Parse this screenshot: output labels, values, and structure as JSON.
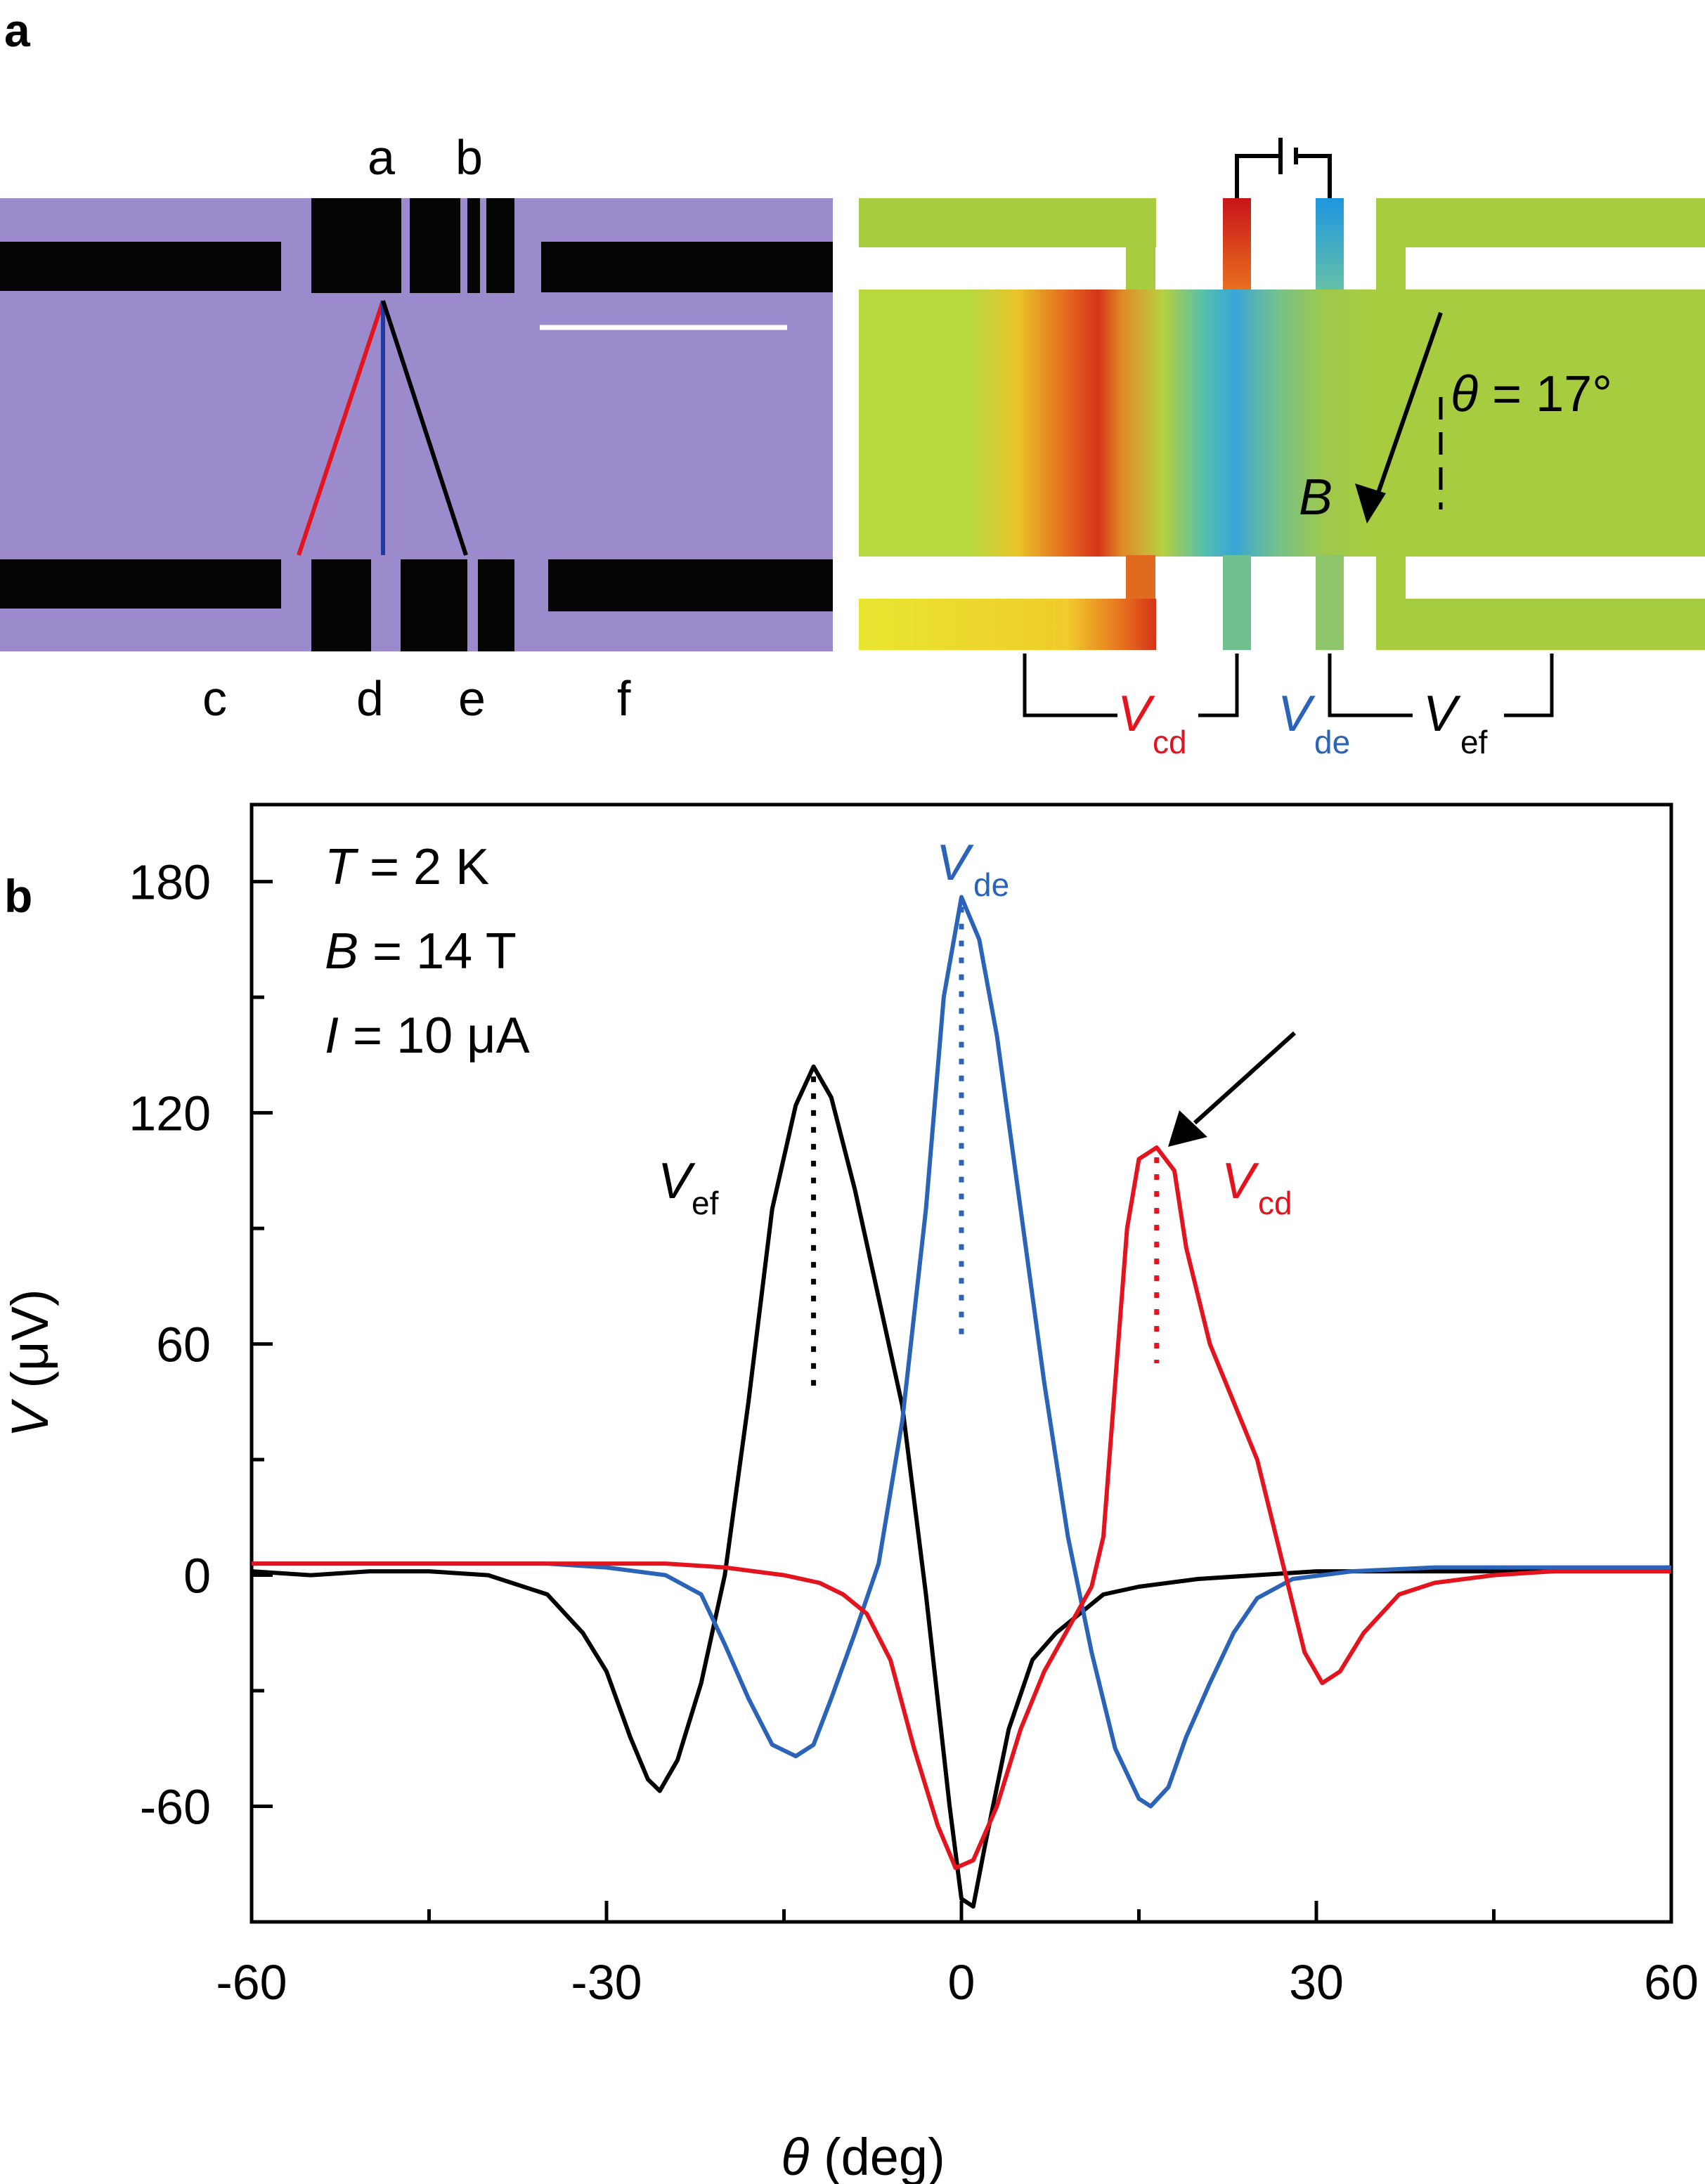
{
  "panel_labels": {
    "a": "a",
    "b": "b"
  },
  "sem": {
    "top_labels": [
      "a",
      "b"
    ],
    "bottom_labels": [
      "c",
      "d",
      "e",
      "f"
    ],
    "background_color": "#9b8bcc",
    "slot_color": "#050505"
  },
  "simulation": {
    "theta_label": "θ = 17°",
    "field_label": "B",
    "voltages": [
      {
        "symbol": "V",
        "sub": "cd",
        "color": "#e3141e"
      },
      {
        "symbol": "V",
        "sub": "de",
        "color": "#2a63b8"
      },
      {
        "symbol": "V",
        "sub": "ef",
        "color": "#000000"
      }
    ],
    "colors": {
      "bar_base": "#a8cc40",
      "hot": "#d43418",
      "cold": "#38a6d8",
      "lead_left": "#e8e630"
    }
  },
  "chart_data": {
    "type": "line",
    "xlabel": "θ (deg)",
    "ylabel": "V (μV)",
    "xlim": [
      -60,
      60
    ],
    "ylim": [
      -90,
      200
    ],
    "xticks": [
      -60,
      -30,
      0,
      30,
      60
    ],
    "yticks": [
      -60,
      0,
      60,
      120,
      180
    ],
    "conditions": [
      "T = 2 K",
      "B = 14 T",
      "I  = 10 μA"
    ],
    "series": [
      {
        "name": "V_ef",
        "label": "V",
        "sub": "ef",
        "color": "#000000",
        "peak_x": -12.5,
        "peak_base": 48,
        "points": [
          [
            -60,
            1
          ],
          [
            -55,
            0
          ],
          [
            -50,
            1
          ],
          [
            -45,
            1
          ],
          [
            -40,
            0
          ],
          [
            -35,
            -5
          ],
          [
            -32,
            -15
          ],
          [
            -30,
            -25
          ],
          [
            -28,
            -42
          ],
          [
            -26.5,
            -53
          ],
          [
            -25.5,
            -56
          ],
          [
            -24,
            -48
          ],
          [
            -22,
            -28
          ],
          [
            -20,
            0
          ],
          [
            -18,
            45
          ],
          [
            -16,
            95
          ],
          [
            -14,
            122
          ],
          [
            -12.5,
            132
          ],
          [
            -11,
            124
          ],
          [
            -9,
            100
          ],
          [
            -7,
            72
          ],
          [
            -5,
            44
          ],
          [
            -3,
            -5
          ],
          [
            -1,
            -60
          ],
          [
            0,
            -84
          ],
          [
            1,
            -86
          ],
          [
            2,
            -70
          ],
          [
            4,
            -40
          ],
          [
            6,
            -22
          ],
          [
            8,
            -15
          ],
          [
            10,
            -10
          ],
          [
            12,
            -5
          ],
          [
            15,
            -3
          ],
          [
            20,
            -1
          ],
          [
            30,
            1
          ],
          [
            40,
            1
          ],
          [
            50,
            1
          ],
          [
            60,
            2
          ]
        ]
      },
      {
        "name": "V_de",
        "label": "V",
        "sub": "de",
        "color": "#2a63b8",
        "peak_x": 0,
        "peak_base": 62,
        "points": [
          [
            -60,
            3
          ],
          [
            -50,
            3
          ],
          [
            -40,
            3
          ],
          [
            -35,
            3
          ],
          [
            -30,
            2
          ],
          [
            -25,
            0
          ],
          [
            -22,
            -5
          ],
          [
            -20,
            -18
          ],
          [
            -18,
            -32
          ],
          [
            -16,
            -44
          ],
          [
            -14,
            -47
          ],
          [
            -12.5,
            -44
          ],
          [
            -11,
            -32
          ],
          [
            -9,
            -15
          ],
          [
            -7,
            3
          ],
          [
            -5,
            40
          ],
          [
            -3,
            95
          ],
          [
            -1.5,
            150
          ],
          [
            0,
            176
          ],
          [
            1.5,
            165
          ],
          [
            3,
            140
          ],
          [
            5,
            95
          ],
          [
            7,
            50
          ],
          [
            9,
            10
          ],
          [
            11,
            -20
          ],
          [
            13,
            -45
          ],
          [
            15,
            -58
          ],
          [
            16,
            -60
          ],
          [
            17.5,
            -55
          ],
          [
            19,
            -42
          ],
          [
            21,
            -28
          ],
          [
            23,
            -15
          ],
          [
            25,
            -6
          ],
          [
            28,
            -1
          ],
          [
            33,
            1
          ],
          [
            40,
            2
          ],
          [
            50,
            2
          ],
          [
            60,
            2
          ]
        ]
      },
      {
        "name": "V_cd",
        "label": "V",
        "sub": "cd",
        "color": "#e3141e",
        "peak_x": 16.5,
        "peak_base": 55,
        "points": [
          [
            -60,
            3
          ],
          [
            -50,
            3
          ],
          [
            -40,
            3
          ],
          [
            -30,
            3
          ],
          [
            -25,
            3
          ],
          [
            -20,
            2
          ],
          [
            -15,
            0
          ],
          [
            -12,
            -2
          ],
          [
            -10,
            -5
          ],
          [
            -8,
            -10
          ],
          [
            -6,
            -22
          ],
          [
            -4,
            -45
          ],
          [
            -2,
            -65
          ],
          [
            -0.5,
            -76
          ],
          [
            1,
            -74
          ],
          [
            3,
            -60
          ],
          [
            5,
            -40
          ],
          [
            7,
            -25
          ],
          [
            9,
            -14
          ],
          [
            11,
            -3
          ],
          [
            12,
            10
          ],
          [
            13,
            50
          ],
          [
            14,
            90
          ],
          [
            15,
            108
          ],
          [
            16.5,
            111
          ],
          [
            18,
            105
          ],
          [
            19,
            85
          ],
          [
            21,
            60
          ],
          [
            23,
            45
          ],
          [
            25,
            30
          ],
          [
            27,
            5
          ],
          [
            29,
            -20
          ],
          [
            30.5,
            -28
          ],
          [
            32,
            -25
          ],
          [
            34,
            -15
          ],
          [
            37,
            -5
          ],
          [
            40,
            -2
          ],
          [
            45,
            0
          ],
          [
            50,
            1
          ],
          [
            60,
            1
          ]
        ]
      }
    ],
    "annotation_arrow_target": [
      17,
      112
    ]
  }
}
